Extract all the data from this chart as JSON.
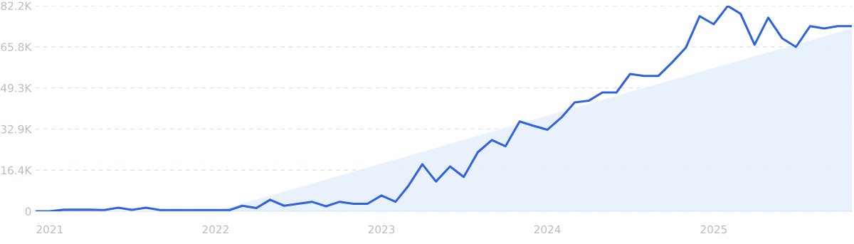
{
  "chart_data": {
    "type": "line",
    "x": [
      "2020-12",
      "2021-01",
      "2021-02",
      "2021-03",
      "2021-04",
      "2021-05",
      "2021-06",
      "2021-07",
      "2021-08",
      "2021-09",
      "2021-10",
      "2021-11",
      "2021-12",
      "2022-01",
      "2022-02",
      "2022-03",
      "2022-04",
      "2022-05",
      "2022-06",
      "2022-07",
      "2022-08",
      "2022-09",
      "2022-10",
      "2022-11",
      "2022-12",
      "2023-01",
      "2023-02",
      "2023-03",
      "2023-04",
      "2023-05",
      "2023-06",
      "2023-07",
      "2023-08",
      "2023-09",
      "2023-10",
      "2023-11",
      "2023-12",
      "2024-01",
      "2024-02",
      "2024-03",
      "2024-04",
      "2024-05",
      "2024-06",
      "2024-07",
      "2024-08",
      "2024-09",
      "2024-10",
      "2024-11",
      "2024-12",
      "2025-01",
      "2025-02",
      "2025-03",
      "2025-04",
      "2025-05",
      "2025-06",
      "2025-07",
      "2025-08",
      "2025-09",
      "2025-10",
      "2025-11"
    ],
    "series": [
      {
        "type": "area",
        "color": "#e6effc",
        "x": [
          "2022-01",
          "2025-11"
        ],
        "values": [
          0,
          73200
        ]
      },
      {
        "color": "#2f62e0",
        "values": [
          0,
          0,
          600,
          600,
          600,
          500,
          1400,
          600,
          1400,
          500,
          500,
          500,
          500,
          500,
          500,
          2200,
          1300,
          4600,
          2200,
          3000,
          3800,
          2000,
          3800,
          3000,
          3000,
          6300,
          3800,
          10100,
          18800,
          11900,
          17900,
          13700,
          23600,
          28500,
          26000,
          35900,
          34200,
          32600,
          37500,
          43500,
          44200,
          47500,
          47500,
          54900,
          54100,
          54100,
          59400,
          65500,
          78000,
          74800,
          82100,
          79000,
          66600,
          77400,
          69100,
          65700,
          74000,
          73100,
          74000,
          74000
        ]
      }
    ],
    "xlim": [
      "2020-12",
      "2025-11"
    ],
    "xticks": [
      {
        "value": "2021-01",
        "label": "2021"
      },
      {
        "value": "2022-01",
        "label": "2022"
      },
      {
        "value": "2023-01",
        "label": "2023"
      },
      {
        "value": "2024-01",
        "label": "2024"
      },
      {
        "value": "2025-01",
        "label": "2025"
      }
    ],
    "ylim": [
      0,
      82200
    ],
    "yticks": [
      0,
      {
        "value": 16440,
        "label": "16.4K"
      },
      {
        "value": 32880,
        "label": "32.9K"
      },
      {
        "value": 49320,
        "label": "49.3K"
      },
      {
        "value": 65760,
        "label": "65.8K"
      },
      {
        "value": 82200,
        "label": "82.2K"
      }
    ],
    "grid": "y",
    "line_style": "solid",
    "marker": "none"
  }
}
